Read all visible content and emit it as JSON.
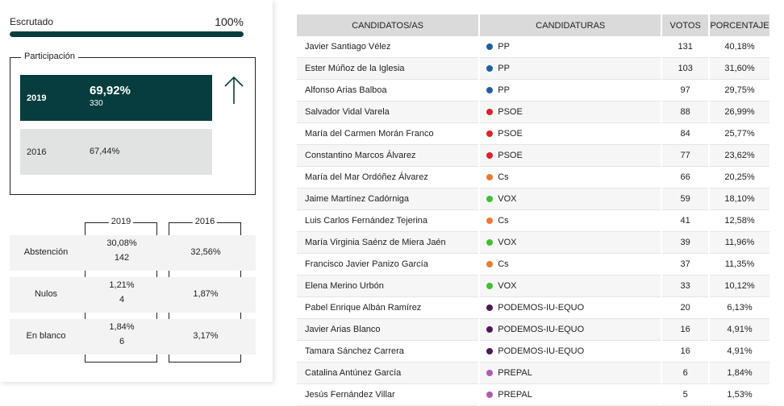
{
  "escrutado": {
    "label": "Escrutado",
    "percent_text": "100%",
    "progress": 1.0
  },
  "participacion": {
    "legend": "Participación",
    "current": {
      "year": "2019",
      "percent": "69,92%",
      "votes": "330"
    },
    "previous": {
      "year": "2016",
      "percent": "67,44%"
    },
    "trend_icon": "arrow-up-icon"
  },
  "stats": {
    "year_current": "2019",
    "year_previous": "2016",
    "rows": [
      {
        "label": "Abstención",
        "current_pct": "30,08%",
        "current_num": "142",
        "previous_pct": "32,56%"
      },
      {
        "label": "Nulos",
        "current_pct": "1,21%",
        "current_num": "4",
        "previous_pct": "1,87%"
      },
      {
        "label": "En blanco",
        "current_pct": "1,84%",
        "current_num": "6",
        "previous_pct": "3,17%"
      }
    ]
  },
  "results": {
    "headers": {
      "candidate": "CANDIDATOS/AS",
      "party": "CANDIDATURAS",
      "votes": "VOTOS",
      "percent": "PORCENTAJE"
    },
    "party_colors": {
      "PP": "#1f5fa8",
      "PSOE": "#e1202a",
      "Cs": "#f07a32",
      "VOX": "#3ec230",
      "PODEMOS-IU-EQUO": "#4e1a55",
      "PREPAL": "#b05bb2"
    },
    "rows": [
      {
        "candidate": "Javier Santiago Vélez",
        "party": "PP",
        "votes": "131",
        "percent": "40,18%"
      },
      {
        "candidate": "Ester Múñoz de la Iglesia",
        "party": "PP",
        "votes": "103",
        "percent": "31,60%"
      },
      {
        "candidate": "Alfonso Arias Balboa",
        "party": "PP",
        "votes": "97",
        "percent": "29,75%"
      },
      {
        "candidate": "Salvador Vidal Varela",
        "party": "PSOE",
        "votes": "88",
        "percent": "26,99%"
      },
      {
        "candidate": "María del Carmen Morán Franco",
        "party": "PSOE",
        "votes": "84",
        "percent": "25,77%"
      },
      {
        "candidate": "Constantino Marcos Álvarez",
        "party": "PSOE",
        "votes": "77",
        "percent": "23,62%"
      },
      {
        "candidate": "María del Mar Ordóñez Álvarez",
        "party": "Cs",
        "votes": "66",
        "percent": "20,25%"
      },
      {
        "candidate": "Jaime Martínez Cadórniga",
        "party": "VOX",
        "votes": "59",
        "percent": "18,10%"
      },
      {
        "candidate": "Luis Carlos Fernández Tejerina",
        "party": "Cs",
        "votes": "41",
        "percent": "12,58%"
      },
      {
        "candidate": "María Virginia Saénz de Miera Jaén",
        "party": "VOX",
        "votes": "39",
        "percent": "11,96%"
      },
      {
        "candidate": "Francisco Javier Panizo García",
        "party": "Cs",
        "votes": "37",
        "percent": "11,35%"
      },
      {
        "candidate": "Elena Merino Urbón",
        "party": "VOX",
        "votes": "33",
        "percent": "10,12%"
      },
      {
        "candidate": "Pabel Enrique Albán Ramírez",
        "party": "PODEMOS-IU-EQUO",
        "votes": "20",
        "percent": "6,13%"
      },
      {
        "candidate": "Javier Arias Blanco",
        "party": "PODEMOS-IU-EQUO",
        "votes": "16",
        "percent": "4,91%"
      },
      {
        "candidate": "Tamara Sánchez Carrera",
        "party": "PODEMOS-IU-EQUO",
        "votes": "16",
        "percent": "4,91%"
      },
      {
        "candidate": "Catalina Antúnez García",
        "party": "PREPAL",
        "votes": "6",
        "percent": "1,84%"
      },
      {
        "candidate": "Jesús Fernández Villar",
        "party": "PREPAL",
        "votes": "5",
        "percent": "1,53%"
      }
    ]
  }
}
